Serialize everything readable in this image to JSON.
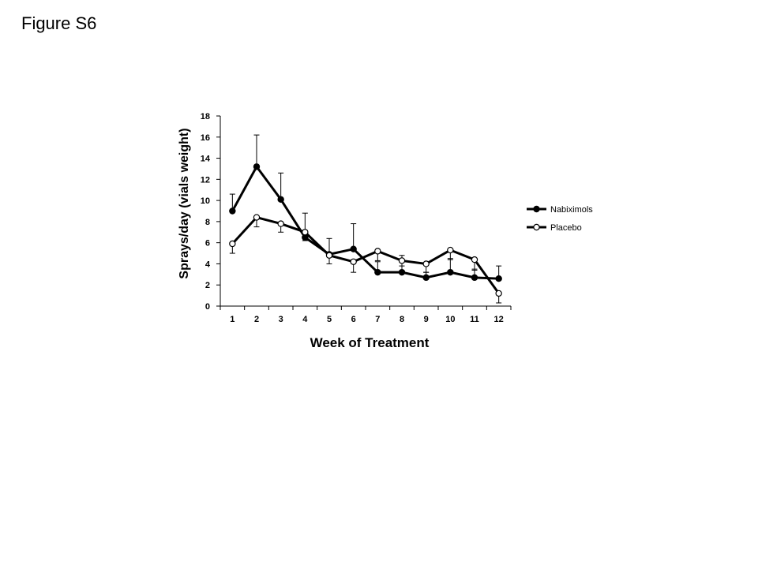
{
  "figure_label": "Figure S6",
  "chart_data": {
    "type": "line",
    "title": "",
    "xlabel": "Week of Treatment",
    "ylabel": "Sprays/day (vials weight)",
    "categories": [
      "1",
      "2",
      "3",
      "4",
      "5",
      "6",
      "7",
      "8",
      "9",
      "10",
      "11",
      "12"
    ],
    "ylim": [
      0,
      18
    ],
    "yticks": [
      0,
      2,
      4,
      6,
      8,
      10,
      12,
      14,
      16,
      18
    ],
    "grid": false,
    "legend_position": "right",
    "series": [
      {
        "name": "Nabiximols",
        "marker": "filled-circle",
        "values": [
          9.0,
          13.2,
          10.1,
          6.5,
          4.9,
          5.4,
          3.2,
          3.2,
          2.7,
          3.2,
          2.7,
          2.6
        ],
        "error_upper": [
          10.6,
          16.2,
          12.6,
          8.8,
          6.4,
          7.8,
          4.2,
          4.8,
          3.2,
          4.5,
          3.5,
          3.8
        ]
      },
      {
        "name": "Placebo",
        "marker": "open-circle",
        "values": [
          5.9,
          8.4,
          7.8,
          7.0,
          4.8,
          4.2,
          5.2,
          4.3,
          4.0,
          5.3,
          4.4,
          1.2
        ],
        "error_lower": [
          5.0,
          7.5,
          7.0,
          6.2,
          4.0,
          3.2,
          4.3,
          3.8,
          3.2,
          4.4,
          3.4,
          0.3
        ]
      }
    ]
  }
}
